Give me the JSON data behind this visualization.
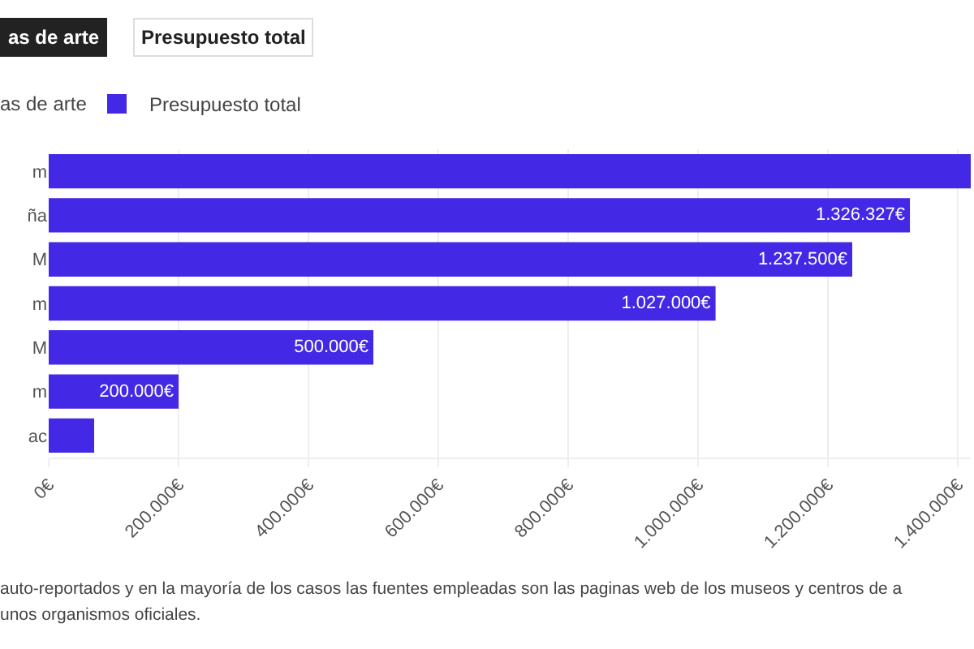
{
  "chart_data": {
    "type": "bar",
    "orientation": "horizontal",
    "categories": [
      "m",
      "ña",
      "M",
      "m",
      "M",
      "m",
      "ac"
    ],
    "series": [
      {
        "name": "Presupuesto total",
        "color": "#4328e6",
        "values": [
          1420000,
          1326327,
          1237500,
          1027000,
          500000,
          200000,
          70000
        ],
        "value_labels": [
          null,
          "1.326.327€",
          "1.237.500€",
          "1.027.000€",
          "500.000€",
          "200.000€",
          null
        ]
      }
    ],
    "xlim": [
      0,
      1420000
    ],
    "xticks": [
      {
        "value": 0,
        "label": "0€"
      },
      {
        "value": 200000,
        "label": "200.000€"
      },
      {
        "value": 400000,
        "label": "400.000€"
      },
      {
        "value": 600000,
        "label": "600.000€"
      },
      {
        "value": 800000,
        "label": "800.000€"
      },
      {
        "value": 1000000,
        "label": "1.000.000€"
      },
      {
        "value": 1200000,
        "label": "1.200.000€"
      },
      {
        "value": 1400000,
        "label": "1.400.000€"
      }
    ],
    "grid": "x",
    "legend": "top left",
    "annotations": [
      "as de arte",
      "Presupuesto total",
      "as de arte",
      "auto-reportados y en la mayoría de los casos las fuentes empleadas son las paginas web de los museos y centros de a",
      "unos organismos oficiales."
    ]
  }
}
